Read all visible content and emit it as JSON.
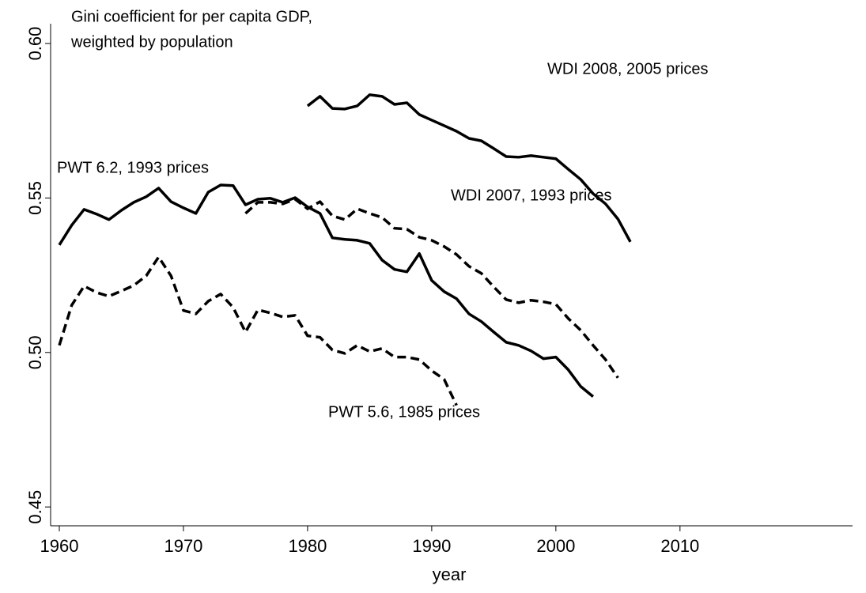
{
  "chart_data": {
    "type": "line",
    "title": [
      "Gini coefficient for per capita GDP,",
      "weighted by population"
    ],
    "xlabel": "year",
    "xlim": [
      1959.3,
      2023.9
    ],
    "xticks": [
      1960,
      1970,
      1980,
      1990,
      2000,
      2010
    ],
    "ylim": [
      0.4439,
      0.6064
    ],
    "yticks": [
      {
        "value": 0.45,
        "label": "0.45"
      },
      {
        "value": 0.5,
        "label": "0.50"
      },
      {
        "value": 0.55,
        "label": "0.55"
      },
      {
        "value": 0.6,
        "label": "0.60"
      }
    ],
    "grid": false,
    "series": [
      {
        "name": "PWT 6.2, 1993 prices",
        "color": "#000000",
        "dashed": false,
        "x": [
          1960,
          1961,
          1962,
          1963,
          1964,
          1965,
          1966,
          1967,
          1968,
          1969,
          1970,
          1971,
          1972,
          1973,
          1974,
          1975,
          1976,
          1977,
          1978,
          1979,
          1980,
          1981,
          1982,
          1983,
          1984,
          1985,
          1986,
          1987,
          1988,
          1989,
          1990,
          1991,
          1992,
          1993,
          1994,
          1995,
          1996,
          1997,
          1998,
          1999,
          2000,
          2001,
          2002,
          2003
        ],
        "values": [
          0.5348,
          0.5412,
          0.5463,
          0.5448,
          0.543,
          0.546,
          0.5486,
          0.5504,
          0.5532,
          0.5488,
          0.5468,
          0.545,
          0.5519,
          0.5542,
          0.554,
          0.5478,
          0.5496,
          0.5499,
          0.5486,
          0.5501,
          0.5471,
          0.545,
          0.5371,
          0.5366,
          0.5363,
          0.5353,
          0.5299,
          0.5269,
          0.5261,
          0.532,
          0.5233,
          0.5197,
          0.5174,
          0.5125,
          0.51,
          0.5066,
          0.5033,
          0.5023,
          0.5005,
          0.498,
          0.4985,
          0.4944,
          0.489,
          0.4857
        ]
      },
      {
        "name": "WDI 2007, 1993 prices",
        "color": "#000000",
        "dashed": true,
        "x": [
          1975,
          1976,
          1977,
          1978,
          1979,
          1980,
          1981,
          1982,
          1983,
          1984,
          1985,
          1986,
          1987,
          1988,
          1989,
          1990,
          1991,
          1992,
          1993,
          1994,
          1995,
          1996,
          1997,
          1998,
          1999,
          2000,
          2001,
          2002,
          2003,
          2004,
          2005
        ],
        "values": [
          0.545,
          0.5486,
          0.5486,
          0.5481,
          0.5496,
          0.5465,
          0.5488,
          0.5442,
          0.543,
          0.5465,
          0.545,
          0.5437,
          0.5402,
          0.5399,
          0.5373,
          0.5363,
          0.5343,
          0.5317,
          0.5279,
          0.5256,
          0.5212,
          0.5171,
          0.5161,
          0.5169,
          0.5164,
          0.5156,
          0.511,
          0.5072,
          0.5023,
          0.4977,
          0.4918
        ]
      },
      {
        "name": "WDI 2008, 2005 prices",
        "color": "#000000",
        "dashed": false,
        "x": [
          1980,
          1981,
          1982,
          1983,
          1984,
          1985,
          1986,
          1987,
          1988,
          1989,
          1990,
          1991,
          1992,
          1993,
          1994,
          1995,
          1996,
          1997,
          1998,
          1999,
          2000,
          2001,
          2002,
          2003,
          2004,
          2005,
          2006
        ],
        "values": [
          0.5798,
          0.5829,
          0.579,
          0.5788,
          0.5798,
          0.5834,
          0.5829,
          0.5803,
          0.5808,
          0.577,
          0.5752,
          0.5734,
          0.5716,
          0.5693,
          0.5685,
          0.566,
          0.5634,
          0.5632,
          0.5637,
          0.5632,
          0.5627,
          0.5593,
          0.556,
          0.5514,
          0.5481,
          0.5432,
          0.5358
        ]
      },
      {
        "name": "PWT 5.6, 1985 prices",
        "color": "#000000",
        "dashed": true,
        "x": [
          1960,
          1961,
          1962,
          1963,
          1964,
          1965,
          1966,
          1967,
          1968,
          1969,
          1970,
          1971,
          1972,
          1973,
          1974,
          1975,
          1976,
          1977,
          1978,
          1979,
          1980,
          1981,
          1982,
          1983,
          1984,
          1985,
          1986,
          1987,
          1988,
          1989,
          1990,
          1991,
          1992
        ],
        "values": [
          0.5023,
          0.5153,
          0.5215,
          0.5194,
          0.5182,
          0.5199,
          0.5217,
          0.5248,
          0.5309,
          0.5248,
          0.5136,
          0.5125,
          0.5166,
          0.5189,
          0.5146,
          0.5066,
          0.5138,
          0.5128,
          0.5115,
          0.512,
          0.5054,
          0.5049,
          0.5008,
          0.4997,
          0.5023,
          0.5003,
          0.5013,
          0.4985,
          0.4985,
          0.4977,
          0.4941,
          0.4913,
          0.4829
        ]
      }
    ]
  }
}
